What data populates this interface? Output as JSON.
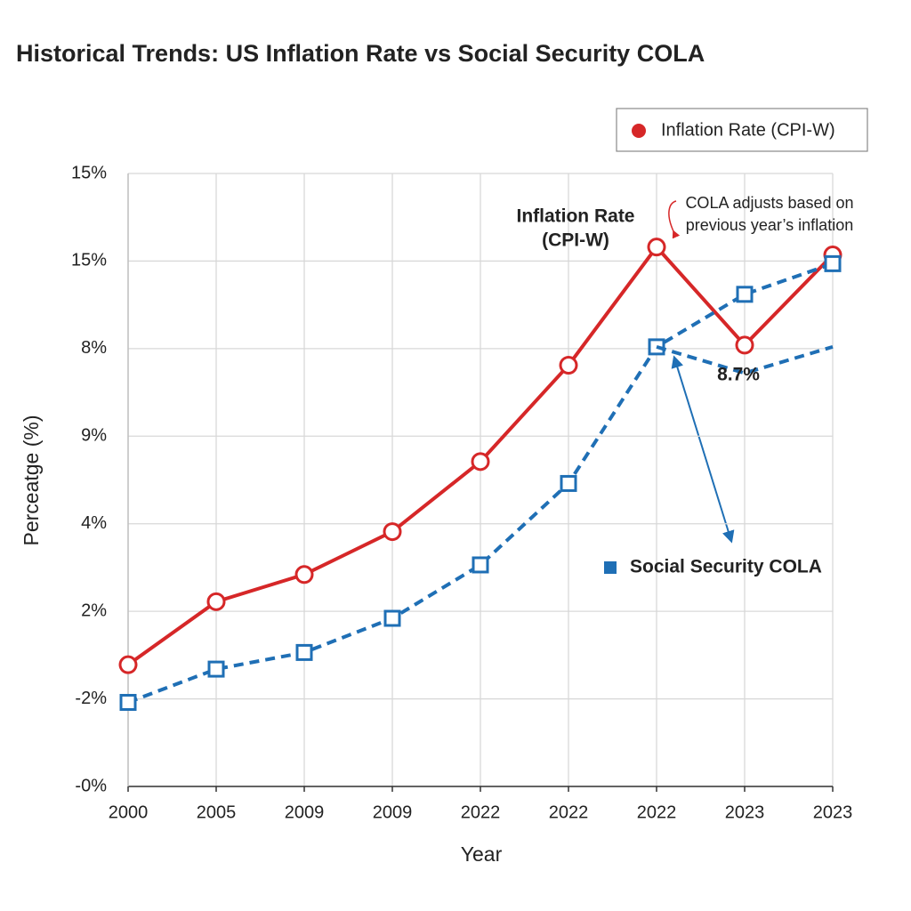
{
  "chart_data": {
    "type": "line",
    "title": "Historical Trends: US Inflation Rate vs Social Security COLA",
    "x_label": "Year",
    "y_label": "Perceatge (%)",
    "categories": [
      "2000",
      "2005",
      "2009",
      "2009",
      "2022",
      "2022",
      "2022",
      "2023",
      "2023"
    ],
    "ylim": [
      0,
      7
    ],
    "yticks": [
      {
        "value": 0,
        "label": "-0%"
      },
      {
        "value": 1,
        "label": "-2%"
      },
      {
        "value": 2,
        "label": "2%"
      },
      {
        "value": 3,
        "label": "4%"
      },
      {
        "value": 4,
        "label": "9%"
      },
      {
        "value": 5,
        "label": "8%"
      },
      {
        "value": 6,
        "label": "15%"
      },
      {
        "value": 7,
        "label": "15%"
      }
    ],
    "grid": true,
    "legend": "top-right",
    "series": [
      {
        "name": "Inflation Rate (CPI-W)",
        "color": "#d62728",
        "style": "solid",
        "marker": "circle",
        "values": [
          1.39,
          2.11,
          2.42,
          2.91,
          3.71,
          4.81,
          6.16,
          5.04,
          6.07
        ]
      },
      {
        "name": "Social Security COLA",
        "color": "#1f6fb5",
        "style": "dashed",
        "marker": "square",
        "values": [
          0.96,
          1.34,
          1.53,
          1.92,
          2.53,
          3.46,
          5.02,
          5.62,
          5.97
        ]
      },
      {
        "color": "#1f6fb5",
        "style": "dashed",
        "marker": "none",
        "values": [
          null,
          null,
          null,
          null,
          null,
          null,
          5.02,
          4.72,
          5.02
        ]
      }
    ],
    "annotations": [
      {
        "lines": [
          "Inflation Rate",
          "(CPI-W)"
        ],
        "color": "#d62728"
      },
      {
        "lines": [
          "COLA adjusts based on",
          "previous year’s inflation"
        ],
        "color": "#222222"
      },
      {
        "lines": [
          "8.7%"
        ],
        "color": "#1f6fb5"
      }
    ]
  }
}
